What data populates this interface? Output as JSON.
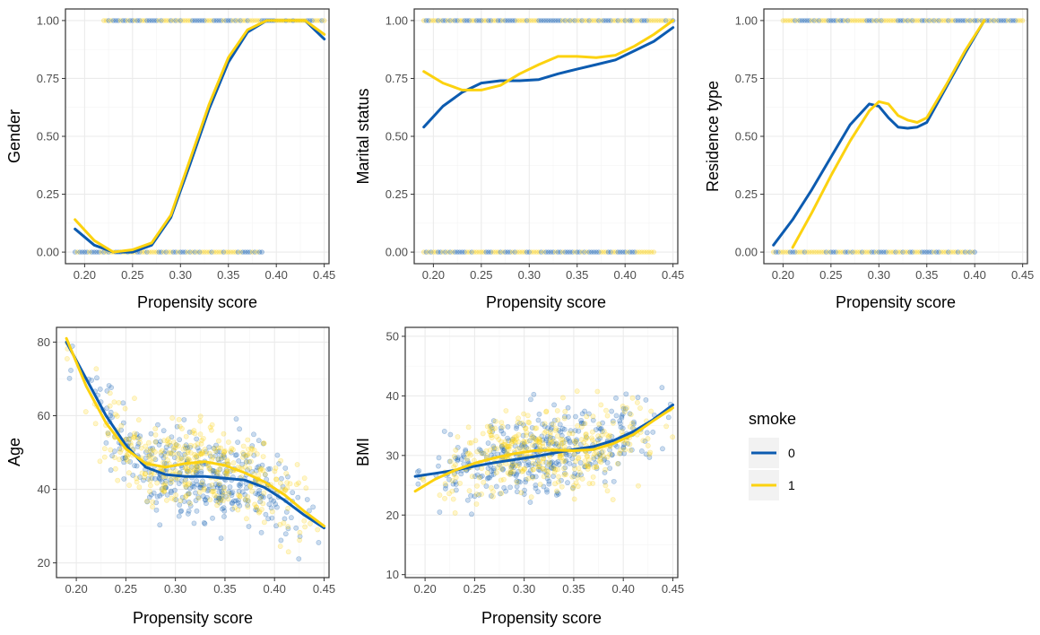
{
  "chart_data": [
    {
      "type": "scatter",
      "kind": "binary",
      "xlabel": "Propensity score",
      "ylabel": "Gender",
      "xlim": [
        0.18,
        0.455
      ],
      "ylim": [
        -0.05,
        1.05
      ],
      "xticks": [
        "0.20",
        "0.25",
        "0.30",
        "0.35",
        "0.40",
        "0.45"
      ],
      "yticks": [
        "0.00",
        "0.25",
        "0.50",
        "0.75",
        "1.00"
      ],
      "grid": true,
      "points": {
        "y0": {
          "x_range": [
            0.19,
            0.385
          ],
          "level": 0
        },
        "y1": {
          "x_range": [
            0.22,
            0.45
          ],
          "level": 1
        }
      },
      "series": [
        {
          "name": "0",
          "x": [
            0.19,
            0.21,
            0.23,
            0.25,
            0.27,
            0.29,
            0.31,
            0.33,
            0.35,
            0.37,
            0.39,
            0.41,
            0.43,
            0.45
          ],
          "y": [
            0.1,
            0.03,
            0.0,
            0.0,
            0.03,
            0.15,
            0.38,
            0.62,
            0.82,
            0.95,
            1.0,
            1.0,
            1.0,
            0.92
          ]
        },
        {
          "name": "1",
          "x": [
            0.19,
            0.21,
            0.23,
            0.25,
            0.27,
            0.29,
            0.31,
            0.33,
            0.35,
            0.37,
            0.39,
            0.41,
            0.43,
            0.45
          ],
          "y": [
            0.14,
            0.05,
            0.0,
            0.01,
            0.04,
            0.16,
            0.4,
            0.64,
            0.84,
            0.96,
            1.0,
            1.0,
            1.0,
            0.94
          ]
        }
      ]
    },
    {
      "type": "scatter",
      "kind": "binary",
      "xlabel": "Propensity score",
      "ylabel": "Marital status",
      "xlim": [
        0.18,
        0.455
      ],
      "ylim": [
        -0.05,
        1.05
      ],
      "xticks": [
        "0.20",
        "0.25",
        "0.30",
        "0.35",
        "0.40",
        "0.45"
      ],
      "yticks": [
        "0.00",
        "0.25",
        "0.50",
        "0.75",
        "1.00"
      ],
      "grid": true,
      "points": {
        "y0": {
          "x_range": [
            0.19,
            0.43
          ],
          "level": 0
        },
        "y1": {
          "x_range": [
            0.19,
            0.45
          ],
          "level": 1
        }
      },
      "series": [
        {
          "name": "0",
          "x": [
            0.19,
            0.21,
            0.23,
            0.25,
            0.27,
            0.29,
            0.31,
            0.33,
            0.35,
            0.37,
            0.39,
            0.41,
            0.43,
            0.45
          ],
          "y": [
            0.54,
            0.63,
            0.69,
            0.73,
            0.74,
            0.74,
            0.745,
            0.77,
            0.79,
            0.81,
            0.83,
            0.87,
            0.91,
            0.97
          ]
        },
        {
          "name": "1",
          "x": [
            0.19,
            0.21,
            0.23,
            0.25,
            0.27,
            0.29,
            0.31,
            0.33,
            0.35,
            0.37,
            0.39,
            0.41,
            0.43,
            0.45
          ],
          "y": [
            0.78,
            0.73,
            0.7,
            0.7,
            0.72,
            0.77,
            0.81,
            0.845,
            0.845,
            0.84,
            0.85,
            0.89,
            0.94,
            1.0
          ]
        }
      ]
    },
    {
      "type": "scatter",
      "kind": "binary",
      "xlabel": "Propensity score",
      "ylabel": "Residence type",
      "xlim": [
        0.18,
        0.455
      ],
      "ylim": [
        -0.05,
        1.05
      ],
      "xticks": [
        "0.20",
        "0.25",
        "0.30",
        "0.35",
        "0.40",
        "0.45"
      ],
      "yticks": [
        "0.00",
        "0.25",
        "0.50",
        "0.75",
        "1.00"
      ],
      "grid": true,
      "points": {
        "y0": {
          "x_range": [
            0.19,
            0.4
          ],
          "level": 0
        },
        "y1": {
          "x_range": [
            0.2,
            0.45
          ],
          "level": 1
        }
      },
      "series": [
        {
          "name": "0",
          "x": [
            0.19,
            0.21,
            0.23,
            0.25,
            0.27,
            0.29,
            0.3,
            0.31,
            0.32,
            0.33,
            0.34,
            0.35,
            0.37,
            0.39,
            0.41
          ],
          "y": [
            0.03,
            0.14,
            0.27,
            0.41,
            0.55,
            0.64,
            0.63,
            0.58,
            0.54,
            0.535,
            0.54,
            0.56,
            0.71,
            0.86,
            1.0
          ]
        },
        {
          "name": "1",
          "x": [
            0.21,
            0.23,
            0.25,
            0.27,
            0.29,
            0.3,
            0.31,
            0.32,
            0.33,
            0.34,
            0.35,
            0.37,
            0.39,
            0.41
          ],
          "y": [
            0.02,
            0.17,
            0.33,
            0.48,
            0.61,
            0.65,
            0.64,
            0.59,
            0.57,
            0.56,
            0.58,
            0.72,
            0.87,
            1.0
          ]
        }
      ]
    },
    {
      "type": "scatter",
      "kind": "continuous",
      "xlabel": "Propensity score",
      "ylabel": "Age",
      "xlim": [
        0.18,
        0.455
      ],
      "ylim": [
        16,
        84
      ],
      "xticks": [
        "0.20",
        "0.25",
        "0.30",
        "0.35",
        "0.40",
        "0.45"
      ],
      "yticks": [
        "20",
        "40",
        "60",
        "80"
      ],
      "grid": true,
      "series": [
        {
          "name": "0",
          "x": [
            0.19,
            0.21,
            0.23,
            0.25,
            0.27,
            0.29,
            0.31,
            0.33,
            0.35,
            0.37,
            0.39,
            0.41,
            0.43,
            0.45
          ],
          "y": [
            80,
            70,
            60,
            52,
            46,
            44,
            43.5,
            43.5,
            43,
            42.5,
            40.5,
            37,
            33,
            29.5
          ]
        },
        {
          "name": "1",
          "x": [
            0.19,
            0.21,
            0.23,
            0.25,
            0.27,
            0.29,
            0.31,
            0.33,
            0.35,
            0.37,
            0.39,
            0.41,
            0.43,
            0.45
          ],
          "y": [
            81,
            68,
            58,
            51,
            47,
            46,
            47,
            47.5,
            46.5,
            44.5,
            42,
            38.5,
            34,
            30
          ]
        }
      ]
    },
    {
      "type": "scatter",
      "kind": "continuous",
      "xlabel": "Propensity score",
      "ylabel": "BMI",
      "xlim": [
        0.18,
        0.455
      ],
      "ylim": [
        9.5,
        51.5
      ],
      "xticks": [
        "0.20",
        "0.25",
        "0.30",
        "0.35",
        "0.40",
        "0.45"
      ],
      "yticks": [
        "10",
        "20",
        "30",
        "40",
        "50"
      ],
      "grid": true,
      "series": [
        {
          "name": "0",
          "x": [
            0.19,
            0.21,
            0.23,
            0.25,
            0.27,
            0.29,
            0.31,
            0.33,
            0.35,
            0.37,
            0.39,
            0.41,
            0.43,
            0.45
          ],
          "y": [
            26.5,
            27,
            27.5,
            28.2,
            28.8,
            29.3,
            29.8,
            30.4,
            31,
            31.5,
            32.5,
            34,
            36,
            38.5
          ]
        },
        {
          "name": "1",
          "x": [
            0.19,
            0.21,
            0.23,
            0.25,
            0.27,
            0.29,
            0.31,
            0.33,
            0.35,
            0.37,
            0.39,
            0.41,
            0.43,
            0.45
          ],
          "y": [
            24,
            26,
            27.5,
            28.7,
            29.6,
            30.3,
            30.8,
            30.9,
            30.8,
            31,
            32,
            33.5,
            35.8,
            38
          ]
        }
      ]
    }
  ],
  "legend": {
    "title": "smoke",
    "items": [
      {
        "label": "0",
        "color": "#0c5bb0"
      },
      {
        "label": "1",
        "color": "#fcd20f"
      }
    ],
    "placement": "right"
  },
  "colors": {
    "series0": "#0c5bb0",
    "series1": "#fcd20f",
    "grid": "#ebebeb",
    "panel_border": "#333333"
  }
}
